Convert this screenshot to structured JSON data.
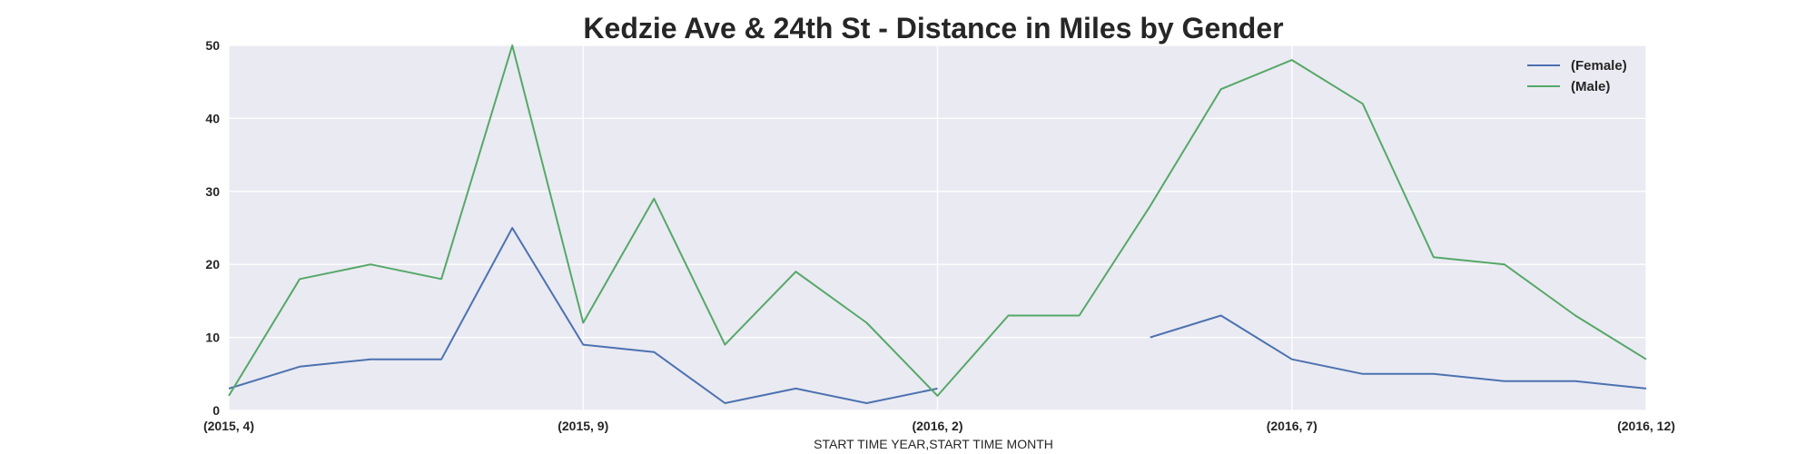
{
  "chart_data": {
    "type": "line",
    "title": "Kedzie Ave & 24th St - Distance in Miles by Gender",
    "xlabel": "START TIME YEAR,START TIME MONTH",
    "ylabel": "",
    "ylim": [
      0,
      50
    ],
    "yticks": [
      0,
      10,
      20,
      30,
      40,
      50
    ],
    "grid": true,
    "legend_position": "top-right",
    "x": [
      "(2015, 4)",
      "(2015, 5)",
      "(2015, 6)",
      "(2015, 7)",
      "(2015, 8)",
      "(2015, 9)",
      "(2015, 10)",
      "(2015, 11)",
      "(2015, 12)",
      "(2016, 1)",
      "(2016, 2)",
      "(2016, 3)",
      "(2016, 4)",
      "(2016, 5)",
      "(2016, 6)",
      "(2016, 7)",
      "(2016, 8)",
      "(2016, 9)",
      "(2016, 10)",
      "(2016, 11)",
      "(2016, 12)"
    ],
    "xtick_labels": [
      "(2015, 4)",
      "(2015, 9)",
      "(2016, 2)",
      "(2016, 7)",
      "(2016, 12)"
    ],
    "series": [
      {
        "name": "(Female)",
        "color": "#4c72b0",
        "values": [
          3,
          6,
          7,
          7,
          25,
          9,
          8,
          1,
          3,
          1,
          3,
          null,
          null,
          10,
          13,
          7,
          5,
          5,
          4,
          4,
          3
        ]
      },
      {
        "name": "(Male)",
        "color": "#55a868",
        "values": [
          2,
          18,
          20,
          18,
          50,
          12,
          29,
          9,
          19,
          12,
          2,
          13,
          13,
          28,
          44,
          48,
          42,
          21,
          20,
          13,
          7
        ]
      }
    ],
    "background_color": "#eaeaf2",
    "grid_color": "#ffffff"
  }
}
